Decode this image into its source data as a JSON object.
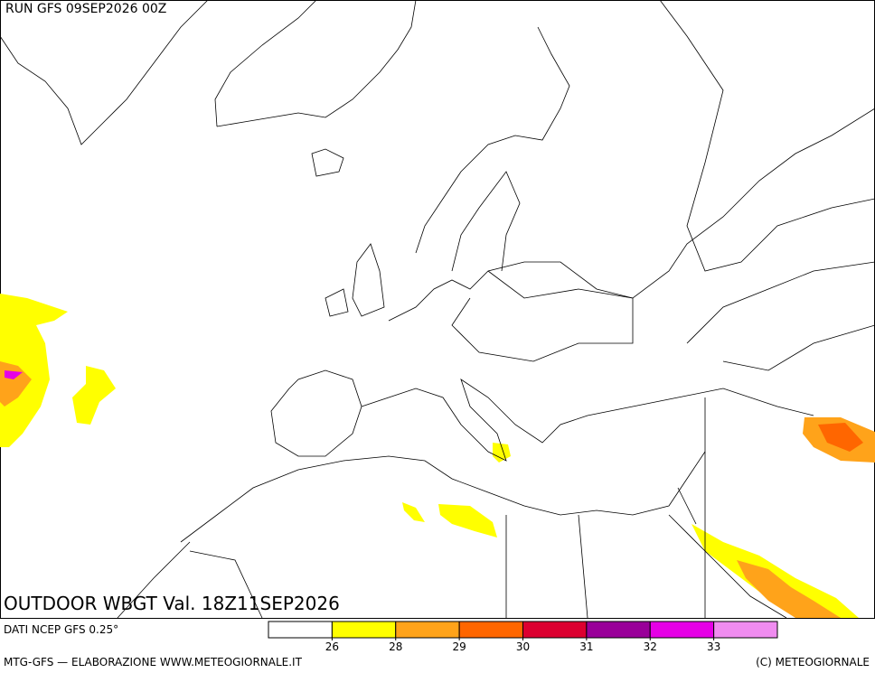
{
  "header": {
    "run": "RUN GFS 09SEP2026 00Z"
  },
  "map": {
    "title": "OUTDOOR WBGT Val. 18Z11SEP2026"
  },
  "footer": {
    "source": "DATI NCEP GFS 0.25°",
    "producer": "MTG-GFS — ELABORAZIONE WWW.METEOGIORNALE.IT",
    "copyright": "(C) METEOGIORNALE"
  },
  "legend": {
    "colors": [
      "#ffffff",
      "#ffff00",
      "#ffa31a",
      "#ff6600",
      "#dc0030",
      "#990099",
      "#e600e6",
      "#f08cf0"
    ],
    "ticks": [
      26,
      28,
      29,
      30,
      31,
      32,
      33
    ]
  }
}
